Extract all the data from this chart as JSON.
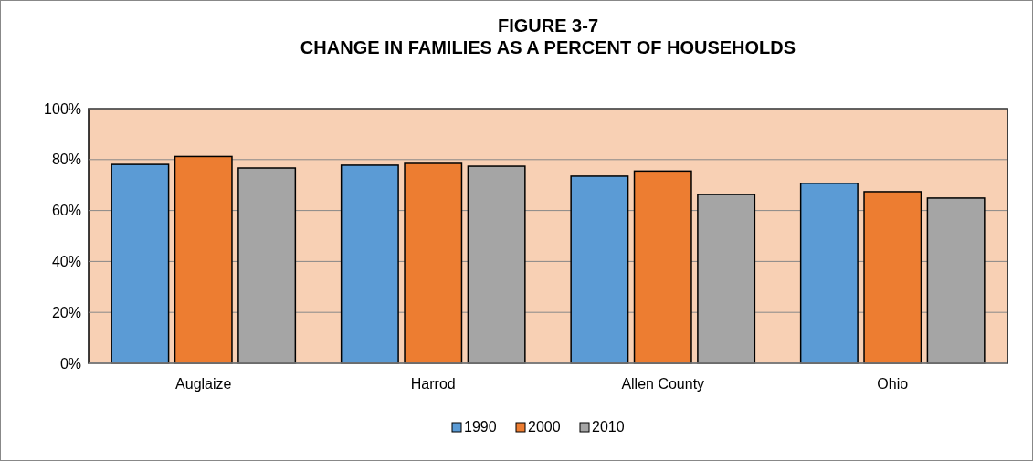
{
  "chart_data": {
    "type": "bar",
    "title": "FIGURE 3-7",
    "subtitle": "CHANGE IN FAMILIES AS A PERCENT OF HOUSEHOLDS",
    "categories": [
      "Auglaize",
      "Harrod",
      "Allen County",
      "Ohio"
    ],
    "series": [
      {
        "name": "1990",
        "color": "#5b9bd5",
        "values": [
          78.1,
          77.8,
          73.5,
          70.7
        ]
      },
      {
        "name": "2000",
        "color": "#ed7d31",
        "values": [
          81.2,
          78.5,
          75.5,
          67.4
        ]
      },
      {
        "name": "2010",
        "color": "#a5a5a5",
        "values": [
          76.7,
          77.4,
          66.3,
          64.9
        ]
      }
    ],
    "ylim": [
      0,
      100
    ],
    "yticks": [
      {
        "value": 0,
        "label": "0%"
      },
      {
        "value": 20,
        "label": "20%"
      },
      {
        "value": 40,
        "label": "40%"
      },
      {
        "value": 60,
        "label": "60%"
      },
      {
        "value": 80,
        "label": "80%"
      },
      {
        "value": 100,
        "label": "100%"
      }
    ],
    "grid": "y",
    "legend": "bottom"
  }
}
